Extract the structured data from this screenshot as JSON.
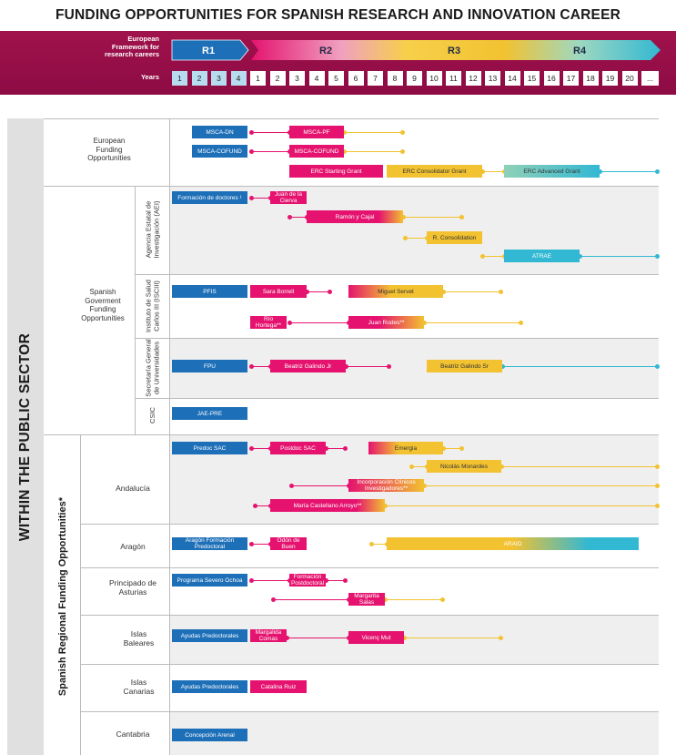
{
  "title": "FUNDING OPPORTUNITIES FOR SPANISH RESEARCH AND INNOVATION CAREER",
  "header": {
    "framework_label": [
      "European",
      "Framework for",
      "research careers"
    ],
    "years_label": "Years",
    "stages": [
      "R1",
      "R2",
      "R3",
      "R4"
    ],
    "years": [
      "1",
      "2",
      "3",
      "4",
      "1",
      "2",
      "3",
      "4",
      "5",
      "6",
      "7",
      "8",
      "9",
      "10",
      "11",
      "12",
      "13",
      "14",
      "15",
      "16",
      "17",
      "18",
      "19",
      "20",
      "..."
    ]
  },
  "sector_label": "WITHIN THE PUBLIC SECTOR",
  "regional_label": "Spanish Regional Funding Opportunities*",
  "groups": {
    "european": "European Funding Opportunities",
    "spanish": "Spanish Goverment Funding Opportunities",
    "aei": "Agencia Estatal de Investigación (AEI)",
    "isciii": "Instituto de Salud Carlos III (ISCIII)",
    "sgu": "Secretaría General de Universidades",
    "csic": "CSIC",
    "andalucia": "Andalucía",
    "aragon": "Aragón",
    "asturias": "Principado de Asturias",
    "baleares": "Islas Baleares",
    "canarias": "Islas Canarias",
    "cantabria": "Cantabria"
  },
  "bars": {
    "msca_dn": "MSCA-DN",
    "msca_pf": "MSCA-PF",
    "msca_cofund": "MSCA-COFUND",
    "msca_cofund2": "MSCA-COFUND",
    "erc_starting": "ERC Starting Grant",
    "erc_consolidator": "ERC Consolidator Grant",
    "erc_advanced": "ERC Advanced Grant",
    "formacion_doctores": "Formación de doctores ¹",
    "juan_cierva": "Juan de la Cierva",
    "ramon_cajal": "Ramón y Cajal",
    "r_consolidation": "R. Consolidation",
    "atrae": "ATRAE",
    "pfis": "PFIS",
    "sara_borrell": "Sara Borrell",
    "miguel_servet": "Miguel Servet",
    "rio_hortega": "Río Hortega**",
    "juan_rodes": "Juan Rodes**",
    "fpu": "FPU",
    "beatriz_jr": "Beatriz Galindo Jr",
    "beatriz_sr": "Beatriz Galindo Sr",
    "jae_pre": "JAE-PRE",
    "predoc_sac": "Predoc SAC",
    "postdoc_sac": "Postdoc SAC",
    "emergia": "Emergia",
    "nicolas_monardes": "Nicolás Monardes",
    "incorporacion": "Incorporación Clínicos Investigadores**",
    "maria_castellano": "María Castellano Arroyo**",
    "aragon_formacion": "Aragón Formación Predoctoral",
    "odon_buen": "Odón de Buen",
    "araid": "ARAID",
    "severo_ochoa": "Programa Severo Ochoa",
    "formacion_postdoctoral": "Formación Postdoctoral",
    "margarita_salas": "Margarita Salas",
    "ayudas_pred_baleares": "Ayudas Predoctorales",
    "margalida_comas": "Margalida Comas",
    "vicenc_mut": "Vicenç Mut",
    "ayudas_pred_canarias": "Ayudas Predoctorales",
    "catalina_ruiz": "Catalina Ruiz",
    "concepcion_arenal": "Concepción Arenal"
  },
  "colors": {
    "blue": "#1d6fb8",
    "pink": "#e5136f",
    "yellow": "#f2c231",
    "teal": "#33b8d3",
    "header": "#980f48"
  }
}
